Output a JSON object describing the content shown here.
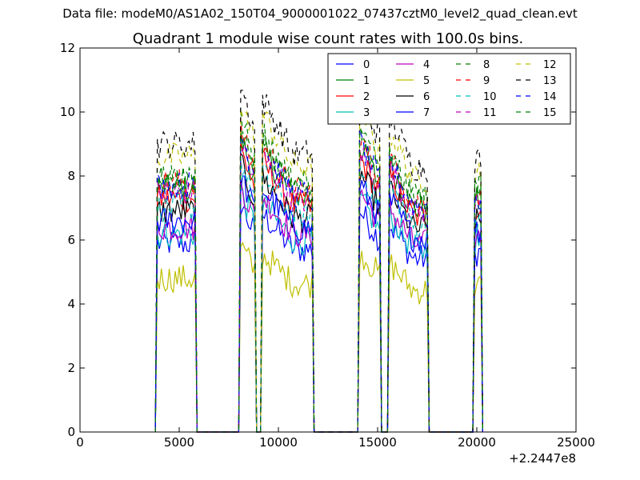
{
  "suptitle": "Data file: modeM0/AS1A02_150T04_9000001022_07437cztM0_level2_quad_clean.evt",
  "chart_data": {
    "type": "line",
    "title": "Quadrant 1 module wise count rates with 100.0s bins.",
    "xlabel": "",
    "ylabel": "",
    "xlim": [
      0,
      25000
    ],
    "ylim": [
      0,
      12
    ],
    "x_offset_label": "+2.2447e8",
    "xticks": [
      0,
      5000,
      10000,
      15000,
      20000,
      25000
    ],
    "xtick_labels": [
      "0",
      "5000",
      "10000",
      "15000",
      "20000",
      "25000"
    ],
    "yticks": [
      0,
      2,
      4,
      6,
      8,
      10,
      12
    ],
    "ytick_labels": [
      "0",
      "2",
      "4",
      "6",
      "8",
      "10",
      "12"
    ],
    "grid": false,
    "legend_position": "top-right",
    "legend_columns": 4,
    "series": [
      {
        "name": "0",
        "color": "#0000ff",
        "dash": "solid",
        "level": 5.9
      },
      {
        "name": "1",
        "color": "#008000",
        "dash": "solid",
        "level": 7.6
      },
      {
        "name": "2",
        "color": "#ff0000",
        "dash": "solid",
        "level": 7.3
      },
      {
        "name": "3",
        "color": "#00bfbf",
        "dash": "solid",
        "level": 6.2
      },
      {
        "name": "4",
        "color": "#bf00bf",
        "dash": "solid",
        "level": 6.4
      },
      {
        "name": "5",
        "color": "#bfbf00",
        "dash": "solid",
        "level": 4.8
      },
      {
        "name": "6",
        "color": "#000000",
        "dash": "solid",
        "level": 6.9
      },
      {
        "name": "7",
        "color": "#0000ff",
        "dash": "solid",
        "level": 6.6
      },
      {
        "name": "8",
        "color": "#008000",
        "dash": "dashed",
        "level": 8.1
      },
      {
        "name": "9",
        "color": "#ff0000",
        "dash": "dashed",
        "level": 7.8
      },
      {
        "name": "10",
        "color": "#00bfbf",
        "dash": "dashed",
        "level": 7.0
      },
      {
        "name": "11",
        "color": "#bf00bf",
        "dash": "dashed",
        "level": 7.5
      },
      {
        "name": "12",
        "color": "#bfbf00",
        "dash": "dashed",
        "level": 8.6
      },
      {
        "name": "13",
        "color": "#000000",
        "dash": "dashed",
        "level": 9.0
      },
      {
        "name": "14",
        "color": "#0000ff",
        "dash": "dashed",
        "level": 7.7
      },
      {
        "name": "15",
        "color": "#008000",
        "dash": "dashed",
        "level": 7.9
      }
    ],
    "segments": [
      {
        "x_start": 3900,
        "x_end": 5800,
        "shape": "flat",
        "rel_amp": 1.0
      },
      {
        "x_start": 8100,
        "x_end": 8800,
        "shape": "peak",
        "rel_amp": 1.08
      },
      {
        "x_start": 9200,
        "x_end": 11700,
        "shape": "decay",
        "rel_amp": 1.05
      },
      {
        "x_start": 14100,
        "x_end": 15100,
        "shape": "peak",
        "rel_amp": 1.05
      },
      {
        "x_start": 15600,
        "x_end": 17500,
        "shape": "decay",
        "rel_amp": 1.0
      },
      {
        "x_start": 19900,
        "x_end": 20200,
        "shape": "flat",
        "rel_amp": 0.95
      }
    ],
    "gaps_zero": [
      [
        6100,
        8000
      ],
      [
        11900,
        14000
      ],
      [
        15300,
        15500
      ],
      [
        17600,
        19800
      ]
    ]
  }
}
